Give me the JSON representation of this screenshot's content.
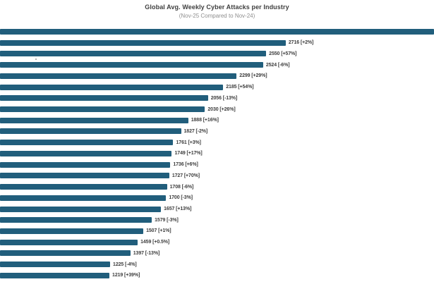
{
  "chart_data": {
    "type": "bar",
    "orientation": "horizontal",
    "title": "Global Avg. Weekly Cyber Attacks per Industry",
    "subtitle": "(Nov-25 Compared to Nov-24)",
    "xlim": [
      290,
      3975
    ],
    "grid": false,
    "legend": "none",
    "note_first_bar": "topmost bar runs full chart width; its value label is clipped off-screen",
    "bars": [
      {
        "value": null,
        "change": null,
        "label": ""
      },
      {
        "value": 2716,
        "change": "+2%",
        "label": "2716 [+2%]"
      },
      {
        "value": 2550,
        "change": "+57%",
        "label": "2550 [+57%]"
      },
      {
        "value": 2524,
        "change": "-6%",
        "label": "2524 [-6%]"
      },
      {
        "value": 2299,
        "change": "+29%",
        "label": "2299 [+29%]"
      },
      {
        "value": 2185,
        "change": "+54%",
        "label": "2185 [+54%]"
      },
      {
        "value": 2056,
        "change": "-13%",
        "label": "2056 [-13%]"
      },
      {
        "value": 2030,
        "change": "+26%",
        "label": "2030 [+26%]"
      },
      {
        "value": 1888,
        "change": "+16%",
        "label": "1888 [+16%]"
      },
      {
        "value": 1827,
        "change": "-2%",
        "label": "1827 [-2%]"
      },
      {
        "value": 1761,
        "change": "+3%",
        "label": "1761 [+3%]"
      },
      {
        "value": 1749,
        "change": "+17%",
        "label": "1749 [+17%]"
      },
      {
        "value": 1736,
        "change": "+6%",
        "label": "1736 [+6%]"
      },
      {
        "value": 1727,
        "change": "+70%",
        "label": "1727 [+70%]"
      },
      {
        "value": 1708,
        "change": "-6%",
        "label": "1708 [-6%]"
      },
      {
        "value": 1700,
        "change": "-3%",
        "label": "1700 [-3%]"
      },
      {
        "value": 1657,
        "change": "+13%",
        "label": "1657 [+13%]"
      },
      {
        "value": 1579,
        "change": "-3%",
        "label": "1579 [-3%]"
      },
      {
        "value": 1507,
        "change": "+1%",
        "label": "1507 [+1%]"
      },
      {
        "value": 1459,
        "change": "+0.5%",
        "label": "1459 [+0.5%]"
      },
      {
        "value": 1397,
        "change": "-13%",
        "label": "1397 [-13%]"
      },
      {
        "value": 1225,
        "change": "-4%",
        "label": "1225 [-4%]"
      },
      {
        "value": 1219,
        "change": "+39%",
        "label": "1219 [+39%]"
      }
    ]
  },
  "colors": {
    "bar": "#215e7c",
    "label": "#3d3d3d",
    "title": "#3f3f3f",
    "subtitle": "#8f8f8f"
  }
}
